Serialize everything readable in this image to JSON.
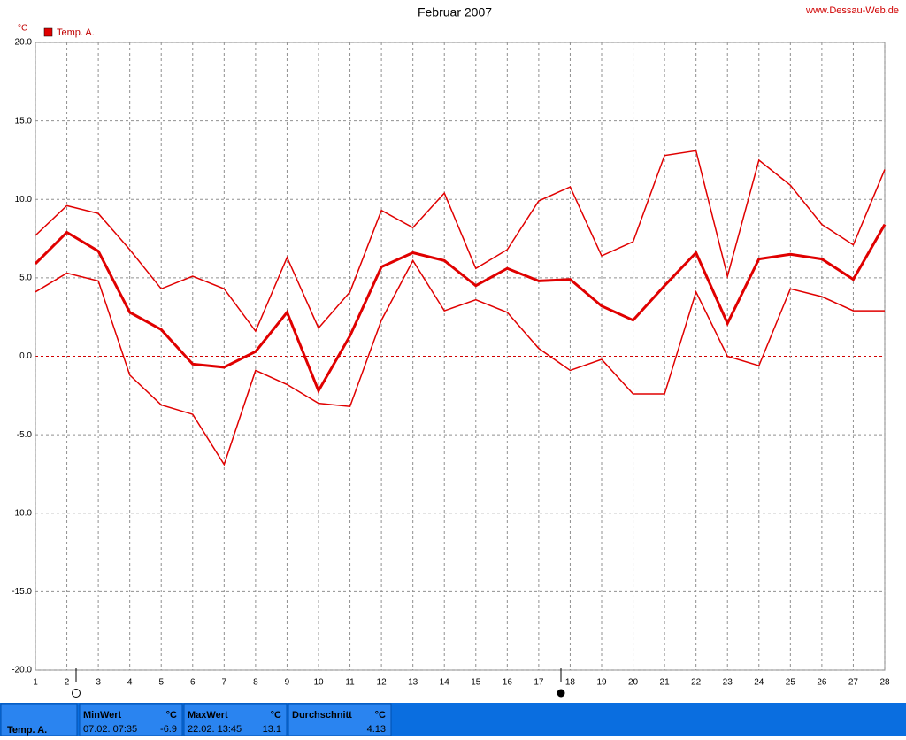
{
  "chart_data": {
    "type": "line",
    "title": "Februar 2007",
    "source": "www.Dessau-Web.de",
    "y_label": "°C",
    "legend": "Temp. A.",
    "categories": [
      "1",
      "2",
      "3",
      "4",
      "5",
      "6",
      "7",
      "8",
      "9",
      "10",
      "11",
      "12",
      "13",
      "14",
      "15",
      "16",
      "17",
      "18",
      "19",
      "20",
      "21",
      "22",
      "23",
      "24",
      "25",
      "26",
      "27",
      "28"
    ],
    "series": [
      {
        "color": "#e00000",
        "width": 1.5,
        "values": [
          7.7,
          9.6,
          9.1,
          6.8,
          4.3,
          5.1,
          4.3,
          1.6,
          6.3,
          1.8,
          4.1,
          9.3,
          8.2,
          10.4,
          5.6,
          6.8,
          9.9,
          10.8,
          6.4,
          7.3,
          12.8,
          13.1,
          5.1,
          12.5,
          10.9,
          8.4,
          7.1,
          11.9
        ]
      },
      {
        "color": "#e00000",
        "width": 3,
        "values": [
          5.9,
          7.9,
          6.7,
          2.8,
          1.7,
          -0.5,
          -0.7,
          0.3,
          2.8,
          -2.2,
          1.3,
          5.7,
          6.6,
          6.1,
          4.5,
          5.6,
          4.8,
          4.9,
          3.2,
          2.3,
          4.5,
          6.6,
          2.1,
          6.2,
          6.5,
          6.2,
          4.9,
          8.4
        ]
      },
      {
        "color": "#e00000",
        "width": 1.5,
        "values": [
          4.1,
          5.3,
          4.8,
          -1.2,
          -3.1,
          -3.7,
          -6.9,
          -0.9,
          -1.8,
          -3.0,
          -3.2,
          2.3,
          6.1,
          2.9,
          3.6,
          2.8,
          0.5,
          -0.9,
          -0.2,
          -2.4,
          -2.4,
          4.1,
          0.0,
          -0.6,
          4.3,
          3.8,
          2.9,
          2.9
        ]
      }
    ],
    "ylim": [
      -20,
      20
    ],
    "yticks": [
      {
        "value": -20,
        "label": "-20.0"
      },
      {
        "value": -15,
        "label": "-15.0"
      },
      {
        "value": -10,
        "label": "-10.0"
      },
      {
        "value": -5,
        "label": "-5.0"
      },
      {
        "value": 0,
        "label": "0.0"
      },
      {
        "value": 5,
        "label": "5.0"
      },
      {
        "value": 10,
        "label": "10.0"
      },
      {
        "value": 15,
        "label": "15.0"
      },
      {
        "value": 20,
        "label": "20.0"
      }
    ],
    "grid": true
  },
  "stats": {
    "row_label": "Temp. A.",
    "boxes": [
      {
        "title": "MinWert",
        "unit": "°C",
        "time": "07.02.  07:35",
        "value": "-6.9"
      },
      {
        "title": "MaxWert",
        "unit": "°C",
        "time": "22.02.  13:45",
        "value": "13.1"
      },
      {
        "title": "Durchschnitt",
        "unit": "°C",
        "value": "4.13"
      }
    ]
  }
}
